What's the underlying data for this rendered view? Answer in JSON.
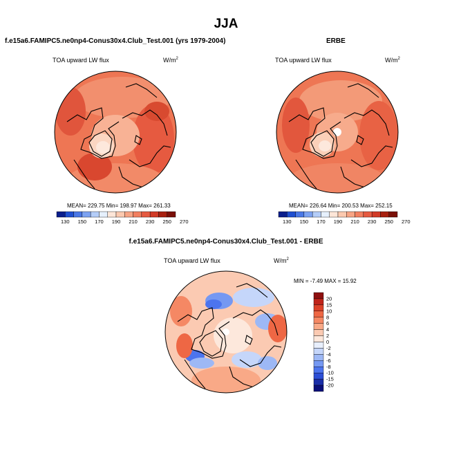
{
  "title": "JJA",
  "colors": {
    "abs_scale": [
      "#0a1e8c",
      "#1f4fd0",
      "#4a78e6",
      "#7da3f2",
      "#b4cdf8",
      "#e6f0fc",
      "#fde6d8",
      "#fbc9af",
      "#f7a484",
      "#f27f5f",
      "#e65a40",
      "#d13a26",
      "#a8200f",
      "#7a1008"
    ],
    "diff_scale": [
      "#0a0f7a",
      "#1a2ea8",
      "#2c4ed6",
      "#4c74ee",
      "#7598f2",
      "#9db8f5",
      "#c5d6fa",
      "#e8effd",
      "#fde8dc",
      "#fbcab2",
      "#f9a987",
      "#f58864",
      "#ee6744",
      "#dc4128",
      "#c0241a",
      "#8e1010"
    ]
  },
  "chart_data": [
    {
      "type": "heatmap",
      "title": "f.e15a6.FAMIPC5.ne0np4-Conus30x4.Club_Test.001 (yrs 1979-2004)",
      "left_label": "TOA upward LW flux",
      "units": "W/m",
      "units_exp": "2",
      "projection": "polar stereographic, north pole",
      "stats": {
        "mean": 229.75,
        "min": 198.97,
        "max": 261.33
      },
      "stats_text": "MEAN= 229.75  Min= 198.97  Max= 261.33",
      "colorbar_ticks": [
        "130",
        "150",
        "170",
        "190",
        "210",
        "230",
        "250",
        "270"
      ]
    },
    {
      "type": "heatmap",
      "title": "ERBE",
      "left_label": "TOA upward LW flux",
      "units": "W/m",
      "units_exp": "2",
      "projection": "polar stereographic, north pole",
      "stats": {
        "mean": 226.64,
        "min": 200.53,
        "max": 252.15
      },
      "stats_text": "MEAN= 226.64  Min= 200.53  Max= 252.15",
      "colorbar_ticks": [
        "130",
        "150",
        "170",
        "190",
        "210",
        "230",
        "250",
        "270"
      ]
    },
    {
      "type": "heatmap",
      "title": "f.e15a6.FAMIPC5.ne0np4-Conus30x4.Club_Test.001 - ERBE",
      "left_label": "TOA upward LW flux",
      "units": "W/m",
      "units_exp": "2",
      "projection": "polar stereographic, north pole",
      "stats": {
        "min": -7.49,
        "max": 15.92
      },
      "stats_text": "MIN =  -7.49 MAX =  15.92",
      "colorbar_ticks": [
        "20",
        "15",
        "10",
        "8",
        "6",
        "4",
        "2",
        "0",
        "-2",
        "-4",
        "-6",
        "-8",
        "-10",
        "-15",
        "-20"
      ]
    }
  ]
}
